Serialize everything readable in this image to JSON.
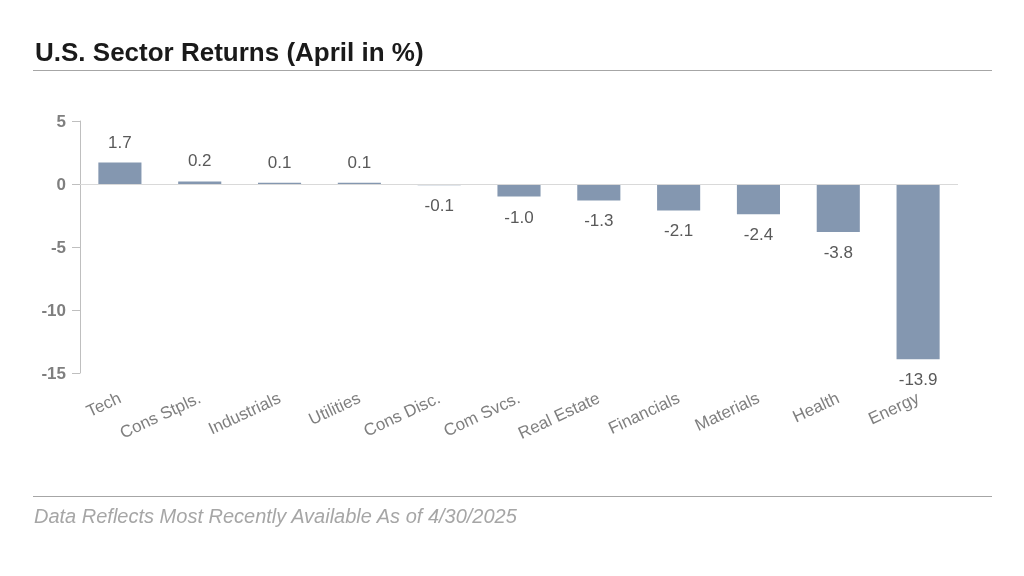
{
  "chart_data": {
    "type": "bar",
    "title": "U.S. Sector Returns (April in %)",
    "categories": [
      "Tech",
      "Cons Stpls.",
      "Industrials",
      "Utilities",
      "Cons Disc.",
      "Com Svcs.",
      "Real Estate",
      "Financials",
      "Materials",
      "Health",
      "Energy"
    ],
    "values": [
      1.7,
      0.2,
      0.1,
      0.1,
      -0.1,
      -1.0,
      -1.3,
      -2.1,
      -2.4,
      -3.8,
      -13.9
    ],
    "value_labels": [
      "1.7",
      "0.2",
      "0.1",
      "0.1",
      "-0.1",
      "-1.0",
      "-1.3",
      "-2.1",
      "-2.4",
      "-3.8",
      "-13.9"
    ],
    "color": "#8497b0",
    "ylim": [
      -15,
      5
    ],
    "yticks": [
      -15,
      -10,
      -5,
      0,
      5
    ],
    "grid": false,
    "ref_lines": [
      {
        "axis": "y",
        "value": 0,
        "color": "#d9d9d9"
      }
    ],
    "annotations": [
      "Data Reflects Most Recently Available As of 4/30/2025"
    ]
  }
}
